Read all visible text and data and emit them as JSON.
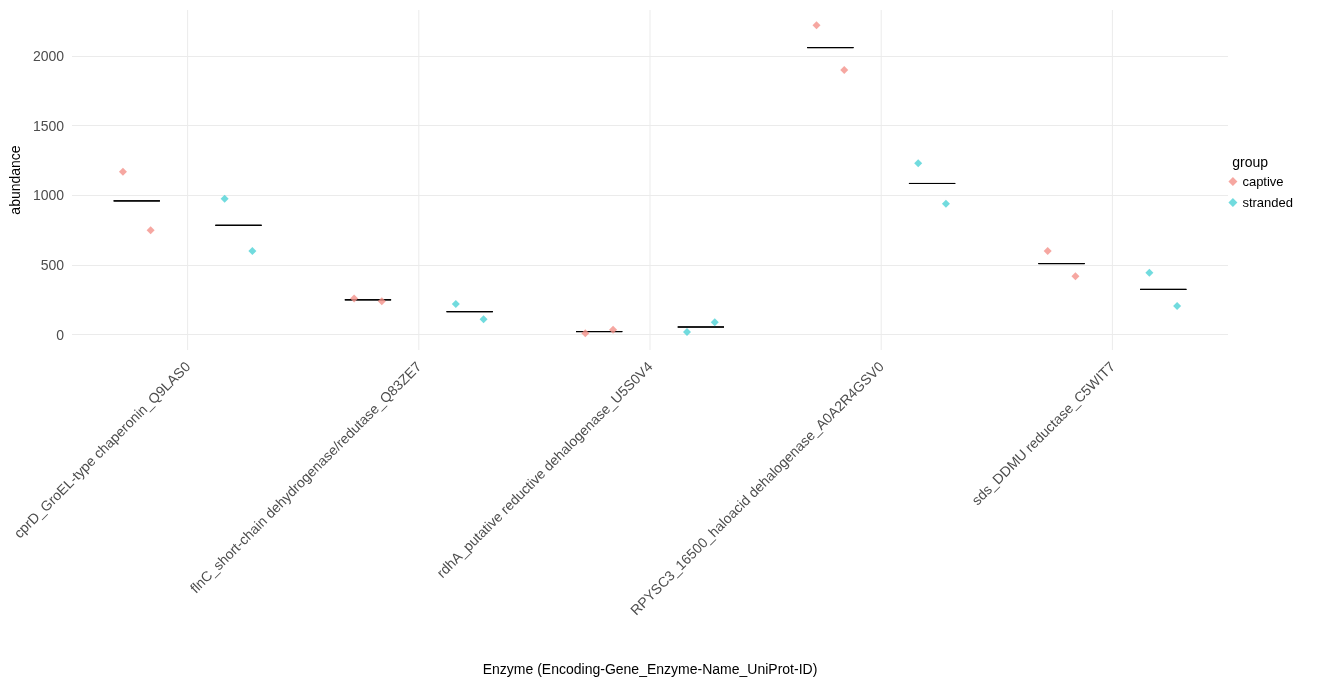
{
  "chart_data": {
    "type": "scatter",
    "xlabel": "Enzyme (Encoding-Gene_Enzyme-Name_UniProt-ID)",
    "ylabel": "abundance",
    "legend_title": "group",
    "categories": [
      "cprD_GroEL-type chaperonin_Q9LAS0",
      "flnC_short-chain dehydrogenase/redutase_Q83ZE7",
      "rdhA_putative reductive dehalogenase_U5S0V4",
      "RPYSC3_16500_haloacid dehalogenase_A0A2R4GSV0",
      "sds_DDMU reductase_C5WIT7"
    ],
    "series": [
      {
        "name": "captive",
        "color": "#f4918a",
        "x": [
          "cprD_GroEL-type chaperonin_Q9LAS0",
          "cprD_GroEL-type chaperonin_Q9LAS0",
          "flnC_short-chain dehydrogenase/redutase_Q83ZE7",
          "flnC_short-chain dehydrogenase/redutase_Q83ZE7",
          "rdhA_putative reductive dehalogenase_U5S0V4",
          "rdhA_putative reductive dehalogenase_U5S0V4",
          "RPYSC3_16500_haloacid dehalogenase_A0A2R4GSV0",
          "RPYSC3_16500_haloacid dehalogenase_A0A2R4GSV0",
          "sds_DDMU reductase_C5WIT7",
          "sds_DDMU reductase_C5WIT7"
        ],
        "values": [
          1170,
          750,
          260,
          240,
          10,
          35,
          2220,
          1900,
          600,
          420
        ]
      },
      {
        "name": "stranded",
        "color": "#4dd2d6",
        "x": [
          "cprD_GroEL-type chaperonin_Q9LAS0",
          "cprD_GroEL-type chaperonin_Q9LAS0",
          "flnC_short-chain dehydrogenase/redutase_Q83ZE7",
          "flnC_short-chain dehydrogenase/redutase_Q83ZE7",
          "rdhA_putative reductive dehalogenase_U5S0V4",
          "rdhA_putative reductive dehalogenase_U5S0V4",
          "RPYSC3_16500_haloacid dehalogenase_A0A2R4GSV0",
          "RPYSC3_16500_haloacid dehalogenase_A0A2R4GSV0",
          "sds_DDMU reductase_C5WIT7",
          "sds_DDMU reductase_C5WIT7"
        ],
        "values": [
          975,
          600,
          220,
          110,
          20,
          90,
          1230,
          940,
          445,
          205
        ]
      },
      {
        "type": "box",
        "color": "#000000",
        "boxes": [
          {
            "low": 960,
            "q1": 960,
            "median": 960,
            "q3": 960,
            "high": 960
          },
          {
            "low": 250,
            "q1": 250,
            "median": 250,
            "q3": 250,
            "high": 250
          },
          {
            "low": 22,
            "q1": 22,
            "median": 22,
            "q3": 22,
            "high": 22
          },
          {
            "low": 2060,
            "q1": 2060,
            "median": 2060,
            "q3": 2060,
            "high": 2060
          },
          {
            "low": 510,
            "q1": 510,
            "median": 510,
            "q3": 510,
            "high": 510
          }
        ]
      },
      {
        "type": "box",
        "color": "#000000",
        "boxes": [
          {
            "low": 785,
            "q1": 785,
            "median": 785,
            "q3": 785,
            "high": 785
          },
          {
            "low": 165,
            "q1": 165,
            "median": 165,
            "q3": 165,
            "high": 165
          },
          {
            "low": 55,
            "q1": 55,
            "median": 55,
            "q3": 55,
            "high": 55
          },
          {
            "low": 1085,
            "q1": 1085,
            "median": 1085,
            "q3": 1085,
            "high": 1085
          },
          {
            "low": 325,
            "q1": 325,
            "median": 325,
            "q3": 325,
            "high": 325
          }
        ]
      }
    ],
    "ylim": [
      -110,
      2330
    ],
    "yticks": [
      0,
      500,
      1000,
      1500,
      2000
    ],
    "grid": true,
    "legend": "right",
    "marker": "diamond"
  }
}
